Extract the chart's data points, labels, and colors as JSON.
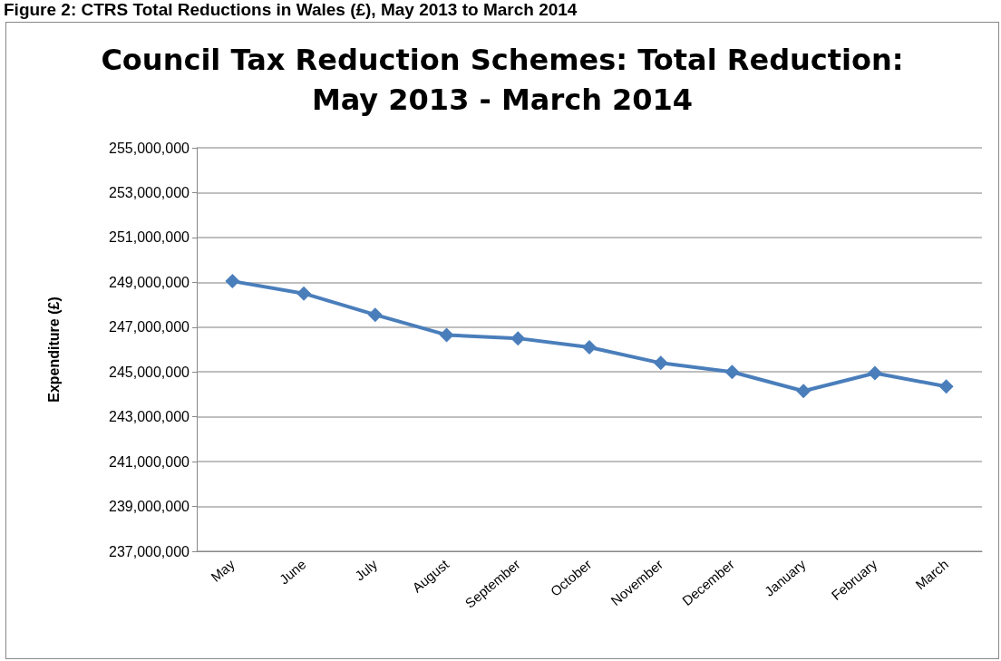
{
  "chart_data": {
    "type": "line",
    "title": "Council Tax Reduction Schemes: Total Reduction:\nMay 2013 - March 2014",
    "ylabel": "Expenditure (£)",
    "annotations": [
      "Figure 2: CTRS Total Reductions in Wales (£), May 2013 to March 2014"
    ],
    "categories": [
      "May",
      "June",
      "July",
      "August",
      "September",
      "October",
      "November",
      "December",
      "January",
      "February",
      "March"
    ],
    "series": [
      {
        "color": "#4a7ebb",
        "values": [
          249050000,
          248500000,
          247550000,
          246650000,
          246500000,
          246100000,
          245400000,
          245000000,
          244150000,
          244950000,
          244350000
        ]
      }
    ],
    "ylim": [
      237000000,
      255000000
    ],
    "yticks": [
      {
        "value": 237000000,
        "label": "237,000,000"
      },
      {
        "value": 239000000,
        "label": "239,000,000"
      },
      {
        "value": 241000000,
        "label": "241,000,000"
      },
      {
        "value": 243000000,
        "label": "243,000,000"
      },
      {
        "value": 245000000,
        "label": "245,000,000"
      },
      {
        "value": 247000000,
        "label": "247,000,000"
      },
      {
        "value": 249000000,
        "label": "249,000,000"
      },
      {
        "value": 251000000,
        "label": "251,000,000"
      },
      {
        "value": 253000000,
        "label": "253,000,000"
      },
      {
        "value": 255000000,
        "label": "255,000,000"
      }
    ],
    "grid": "y",
    "marker": "diamond",
    "line_style": "solid"
  }
}
